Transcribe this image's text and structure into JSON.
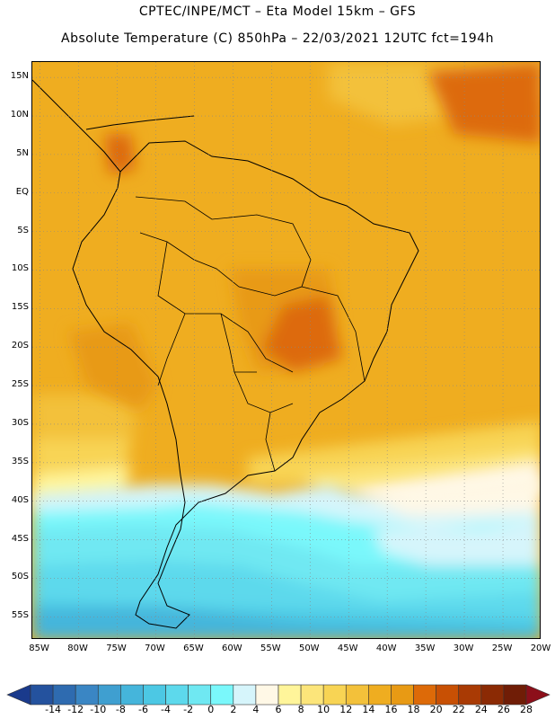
{
  "title": {
    "line1": "CPTEC/INPE/MCT –  Eta Model 15km – GFS",
    "line2": "Absolute Temperature (C) 850hPa – 22/03/2021 12UTC fct=194h"
  },
  "map": {
    "lat_labels": [
      "15N",
      "10N",
      "5N",
      "EQ",
      "5S",
      "10S",
      "15S",
      "20S",
      "25S",
      "30S",
      "35S",
      "40S",
      "45S",
      "50S",
      "55S"
    ],
    "lon_labels": [
      "85W",
      "80W",
      "75W",
      "70W",
      "65W",
      "60W",
      "55W",
      "50W",
      "45W",
      "40W",
      "35W",
      "30W",
      "25W",
      "20W"
    ],
    "lat_range": [
      17,
      -58
    ],
    "lon_range": [
      -86,
      -20
    ],
    "gridlines": "dotted"
  },
  "colorbar": {
    "labels": [
      "-14",
      "-12",
      "-10",
      "-8",
      "-6",
      "-4",
      "-2",
      "0",
      "2",
      "4",
      "6",
      "8",
      "10",
      "12",
      "14",
      "16",
      "18",
      "20",
      "22",
      "24",
      "26",
      "28"
    ],
    "colors": [
      "#1a3a8c",
      "#24529e",
      "#2e6bb0",
      "#3a86c4",
      "#3f9fd0",
      "#45b5db",
      "#4cc8e4",
      "#5dd9ec",
      "#6fe8f2",
      "#7af8fb",
      "#d6f5fb",
      "#fff8e6",
      "#fff59a",
      "#fce57a",
      "#f8d454",
      "#f3c13a",
      "#efad20",
      "#e89a14",
      "#dd6a08",
      "#c85004",
      "#a93a04",
      "#8b2a04",
      "#701d06",
      "#8c0f1a"
    ]
  },
  "legend_colors": {
    "coast": "#000000",
    "ocean_base": "#efad20"
  }
}
